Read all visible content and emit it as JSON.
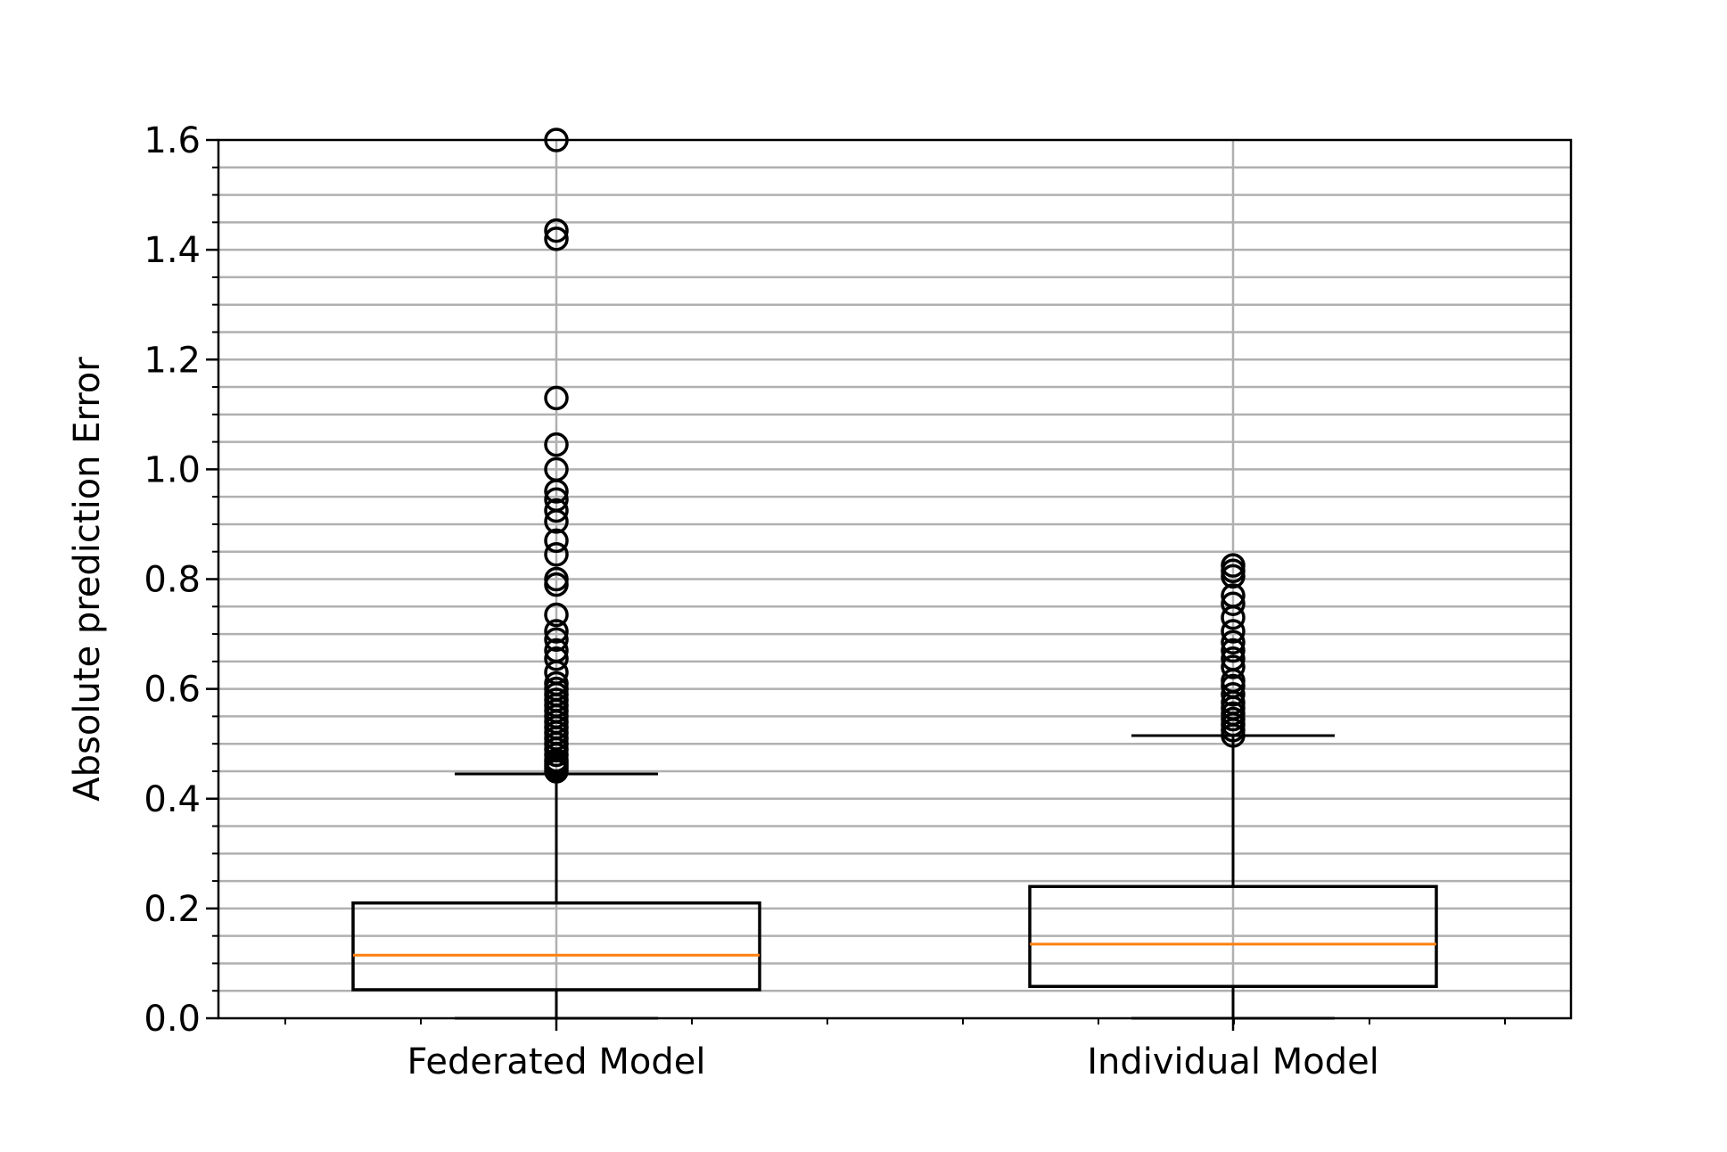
{
  "chart_data": {
    "type": "box",
    "title": "",
    "xlabel": "",
    "ylabel": "Absolute prediction Error",
    "ylim": [
      0.0,
      1.6
    ],
    "yticks": [
      "0.0",
      "0.2",
      "0.4",
      "0.6",
      "0.8",
      "1.0",
      "1.2",
      "1.4",
      "1.6"
    ],
    "ytick_values": [
      0.0,
      0.2,
      0.4,
      0.6,
      0.8,
      1.0,
      1.2,
      1.4,
      1.6
    ],
    "y_minor_step": 0.05,
    "grid": {
      "major_x": true,
      "major_y": true,
      "minor_y": true,
      "color": "#b0b0b0"
    },
    "categories": [
      "Federated Model",
      "Individual Model"
    ],
    "boxes": [
      {
        "name": "Federated Model",
        "q1": 0.052,
        "median": 0.115,
        "q3": 0.21,
        "whisker_low": 0.0,
        "whisker_high": 0.445,
        "outliers": [
          0.45,
          0.455,
          0.46,
          0.465,
          0.47,
          0.48,
          0.49,
          0.5,
          0.51,
          0.52,
          0.53,
          0.54,
          0.55,
          0.56,
          0.57,
          0.58,
          0.59,
          0.6,
          0.61,
          0.63,
          0.655,
          0.67,
          0.69,
          0.705,
          0.735,
          0.79,
          0.8,
          0.845,
          0.87,
          0.905,
          0.925,
          0.945,
          0.96,
          1.0,
          1.045,
          1.13,
          1.42,
          1.435,
          1.6
        ]
      },
      {
        "name": "Individual Model",
        "q1": 0.058,
        "median": 0.135,
        "q3": 0.24,
        "whisker_low": 0.0,
        "whisker_high": 0.515,
        "outliers": [
          0.515,
          0.525,
          0.535,
          0.545,
          0.555,
          0.565,
          0.575,
          0.59,
          0.605,
          0.615,
          0.64,
          0.655,
          0.67,
          0.685,
          0.705,
          0.73,
          0.755,
          0.77,
          0.805,
          0.815,
          0.825
        ]
      }
    ],
    "colors": {
      "box": "#000000",
      "median": "#ff7f0e",
      "grid": "#b0b0b0",
      "outlier": "#000000"
    }
  }
}
